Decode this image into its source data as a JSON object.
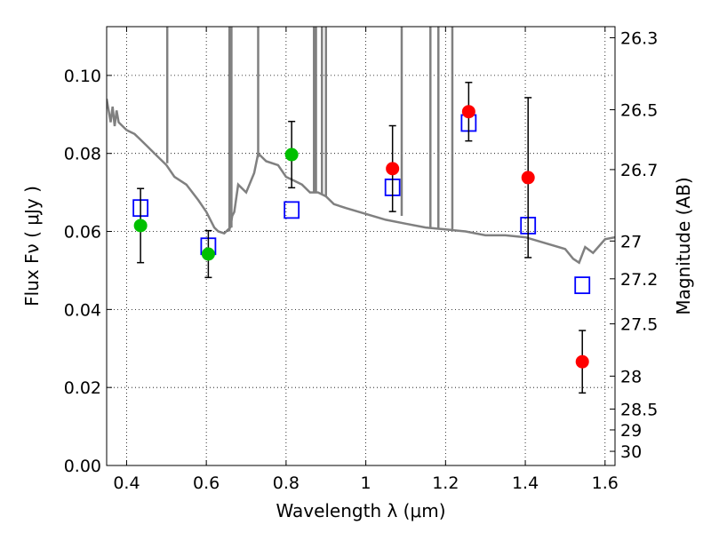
{
  "chart_data": {
    "type": "scatter",
    "xlabel": "Wavelength  λ (μm)",
    "ylabel": "Flux  Fν  ( μJy )",
    "y2label": "Magnitude (AB)",
    "xlim": [
      0.35,
      1.625
    ],
    "ylim": [
      0.0,
      0.1125
    ],
    "grid": true,
    "x_ticks": [
      0.4,
      0.6,
      0.8,
      1.0,
      1.2,
      1.4,
      1.6
    ],
    "x_tick_labels": [
      "0.4",
      "0.6",
      "0.8",
      "1",
      "1.2",
      "1.4",
      "1.6"
    ],
    "y_ticks": [
      0.0,
      0.02,
      0.04,
      0.06,
      0.08,
      0.1
    ],
    "y_tick_labels": [
      "0.00",
      "0.02",
      "0.04",
      "0.06",
      "0.08",
      "0.10"
    ],
    "y2_tick_labels": [
      "26.3",
      "26.5",
      "26.7",
      "27",
      "27.2",
      "27.5",
      "28",
      "28.5",
      "29",
      "30"
    ],
    "colors": {
      "model_line": "#808080",
      "green_points": "#00c000",
      "red_points": "#ff0000",
      "model_boxes": "#0000ff",
      "error_bars": "#000000"
    },
    "series": [
      {
        "marker": "green-circle",
        "points": [
          {
            "x": 0.435,
            "y": 0.0615,
            "err_low": 0.0095,
            "err_high": 0.0095
          },
          {
            "x": 0.605,
            "y": 0.0542,
            "err_low": 0.006,
            "err_high": 0.006
          },
          {
            "x": 0.814,
            "y": 0.0797,
            "err_low": 0.0085,
            "err_high": 0.0085
          }
        ]
      },
      {
        "marker": "red-circle",
        "points": [
          {
            "x": 1.067,
            "y": 0.0761,
            "err_low": 0.011,
            "err_high": 0.011
          },
          {
            "x": 1.258,
            "y": 0.0907,
            "err_low": 0.0075,
            "err_high": 0.0075
          },
          {
            "x": 1.407,
            "y": 0.0738,
            "err_low": 0.0205,
            "err_high": 0.0205
          },
          {
            "x": 1.543,
            "y": 0.0266,
            "err_low": 0.008,
            "err_high": 0.008
          }
        ]
      },
      {
        "marker": "blue-square",
        "points": [
          {
            "x": 0.435,
            "y": 0.066
          },
          {
            "x": 0.605,
            "y": 0.0562
          },
          {
            "x": 0.814,
            "y": 0.0655
          },
          {
            "x": 1.067,
            "y": 0.0713
          },
          {
            "x": 1.258,
            "y": 0.0878
          },
          {
            "x": 1.407,
            "y": 0.0615
          },
          {
            "x": 1.543,
            "y": 0.0462
          }
        ]
      },
      {
        "marker": "line",
        "x": [
          0.35,
          0.36,
          0.365,
          0.37,
          0.375,
          0.38,
          0.39,
          0.4,
          0.41,
          0.42,
          0.43,
          0.435,
          0.45,
          0.46,
          0.48,
          0.5,
          0.52,
          0.55,
          0.58,
          0.6,
          0.62,
          0.63,
          0.645,
          0.66,
          0.665,
          0.67,
          0.68,
          0.7,
          0.72,
          0.73,
          0.75,
          0.78,
          0.8,
          0.82,
          0.84,
          0.86,
          0.88,
          0.9,
          0.92,
          0.95,
          1.0,
          1.05,
          1.1,
          1.15,
          1.2,
          1.25,
          1.3,
          1.35,
          1.4,
          1.45,
          1.5,
          1.52,
          1.535,
          1.55,
          1.57,
          1.6,
          1.625
        ],
        "y": [
          0.094,
          0.088,
          0.092,
          0.087,
          0.091,
          0.088,
          0.087,
          0.086,
          0.0855,
          0.085,
          0.084,
          0.0835,
          0.082,
          0.081,
          0.079,
          0.077,
          0.074,
          0.072,
          0.068,
          0.065,
          0.061,
          0.06,
          0.0595,
          0.061,
          0.064,
          0.065,
          0.072,
          0.07,
          0.075,
          0.08,
          0.078,
          0.077,
          0.074,
          0.073,
          0.072,
          0.07,
          0.07,
          0.069,
          0.067,
          0.066,
          0.0645,
          0.063,
          0.062,
          0.061,
          0.0605,
          0.06,
          0.059,
          0.059,
          0.0585,
          0.057,
          0.0555,
          0.053,
          0.052,
          0.056,
          0.0545,
          0.058,
          0.0585
        ]
      }
    ],
    "emission_spikes": [
      {
        "x": 0.502,
        "y_base": 0.0775
      },
      {
        "x": 0.658,
        "y_base": 0.06
      },
      {
        "x": 0.663,
        "y_base": 0.061
      },
      {
        "x": 0.73,
        "y_base": 0.079
      },
      {
        "x": 0.87,
        "y_base": 0.07
      },
      {
        "x": 0.875,
        "y_base": 0.07
      },
      {
        "x": 0.89,
        "y_base": 0.0695
      },
      {
        "x": 0.9,
        "y_base": 0.069
      },
      {
        "x": 1.09,
        "y_base": 0.064
      },
      {
        "x": 1.162,
        "y_base": 0.0608
      },
      {
        "x": 1.182,
        "y_base": 0.0605
      },
      {
        "x": 1.217,
        "y_base": 0.0605
      }
    ]
  }
}
